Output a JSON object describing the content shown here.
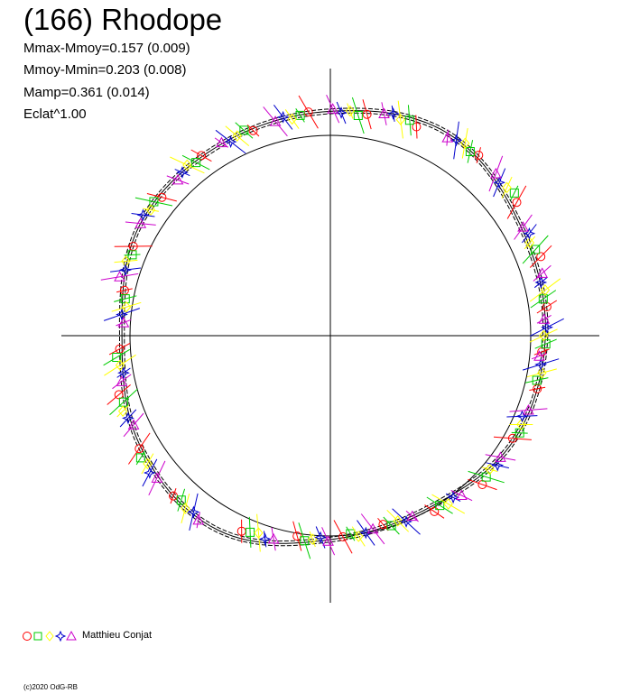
{
  "chart_data": {
    "type": "scatter",
    "title": "(166) Rhodope",
    "annotations": [
      "Mmax-Mmoy=0.157 (0.009)",
      "Mmoy-Mmin=0.203 (0.008)",
      "Mamp=0.361 (0.014)",
      "Eclat^1.00"
    ],
    "legend": {
      "position": "bottom-left",
      "label": "Matthieu Conjat",
      "markers": [
        "circle",
        "square",
        "diamond",
        "star",
        "triangle"
      ]
    },
    "series_colors": [
      "#ff0000",
      "#00cc00",
      "#ffff00",
      "#0000cc",
      "#cc00cc"
    ],
    "axes": {
      "crosshair": true,
      "grid": false
    },
    "reference_circle": {
      "radius": 1.0
    },
    "model_curve": {
      "type": "closed-polar",
      "angles_deg": [
        0,
        30,
        60,
        90,
        120,
        150,
        180,
        210,
        240,
        270,
        300,
        330
      ],
      "radius": [
        1.073,
        1.096,
        1.168,
        1.12,
        1.1,
        1.1,
        1.04,
        1.097,
        1.121,
        1.018,
        0.99,
        1.054
      ]
    },
    "points": {
      "angle_deg": [
        0,
        12,
        25,
        40,
        55,
        72,
        85,
        100,
        115,
        130,
        145,
        160,
        172,
        188,
        200,
        215,
        230,
        250,
        265,
        278,
        290,
        305,
        320,
        335,
        350
      ],
      "radius": [
        1.07,
        1.09,
        1.11,
        1.15,
        1.16,
        1.14,
        1.12,
        1.11,
        1.1,
        1.1,
        1.1,
        1.08,
        1.04,
        1.06,
        1.09,
        1.12,
        1.12,
        1.06,
        1.02,
        1.0,
        0.99,
        1.02,
        1.05,
        1.05,
        1.06
      ]
    }
  },
  "footer": {
    "legend_label": "Matthieu Conjat",
    "copyright": "(c)2020 OdG-RB"
  }
}
